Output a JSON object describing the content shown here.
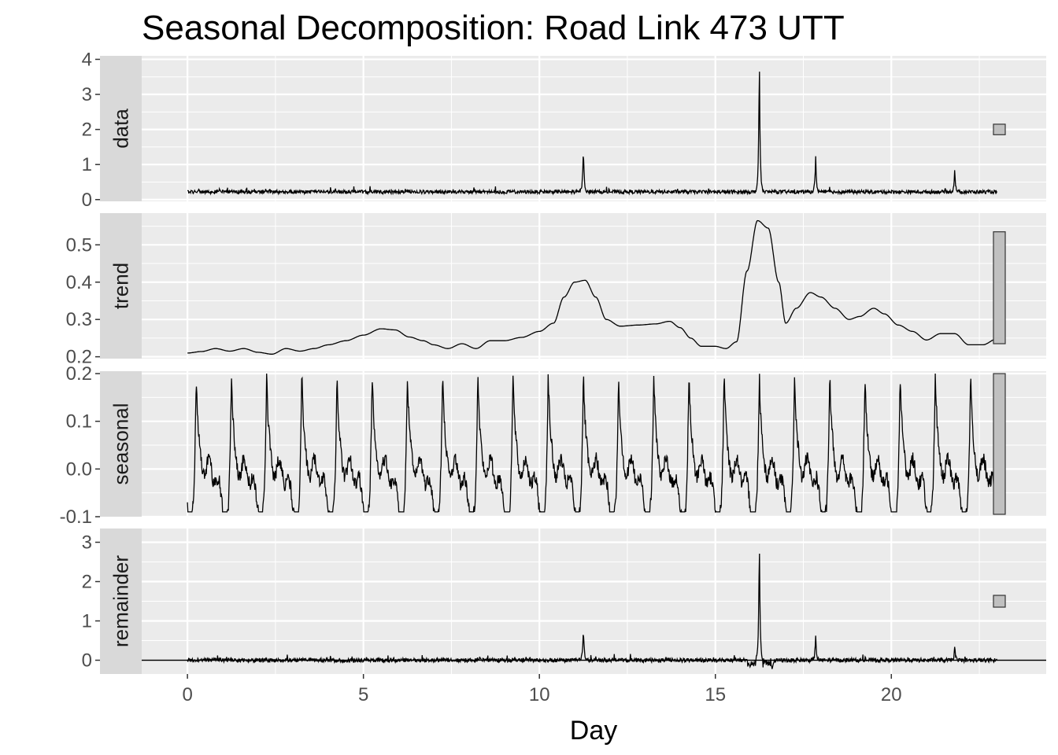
{
  "chart_data": {
    "type": "line",
    "title": "Seasonal Decomposition: Road Link 473 UTT",
    "xlabel": "Day",
    "ylabel": "",
    "xlim": [
      -1.3,
      24.4
    ],
    "x_ticks": [
      0,
      5,
      10,
      15,
      20
    ],
    "x_tick_labels": [
      "0",
      "5",
      "10",
      "15",
      "20"
    ],
    "x_range": [
      0,
      23
    ],
    "grid": true,
    "theme": "gray panels with white gridlines",
    "line_color": "#000000",
    "panel_bg": "#ebebeb",
    "strip_bg": "#d9d9d9",
    "range_bar_fill": "#c0c0c0",
    "panels": [
      {
        "name": "data",
        "ylim": [
          -0.05,
          4.1
        ],
        "y_ticks": [
          0,
          1,
          2,
          3,
          4
        ],
        "y_tick_labels": [
          "0",
          "1",
          "2",
          "3",
          "4"
        ],
        "range_bar": [
          1.85,
          2.15
        ],
        "baseline": 0.22,
        "noise": 0.05,
        "events": [
          {
            "x": 11.25,
            "value": 1.35
          },
          {
            "x": 16.25,
            "value": 3.95
          },
          {
            "x": 17.85,
            "value": 1.0
          },
          {
            "x": 21.8,
            "value": 0.65
          }
        ]
      },
      {
        "name": "trend",
        "ylim": [
          0.195,
          0.585
        ],
        "y_ticks": [
          0.2,
          0.3,
          0.4,
          0.5
        ],
        "y_tick_labels": [
          "0.2",
          "0.3",
          "0.4",
          "0.5"
        ],
        "range_bar": [
          0.235,
          0.535
        ],
        "x": [
          0,
          0.4,
          0.8,
          1.2,
          1.6,
          2.0,
          2.4,
          2.8,
          3.2,
          3.6,
          4.0,
          4.5,
          5.0,
          5.5,
          5.9,
          6.3,
          6.7,
          7.0,
          7.4,
          7.8,
          8.2,
          8.6,
          9.0,
          9.5,
          10.0,
          10.4,
          10.7,
          11.0,
          11.3,
          11.6,
          11.9,
          12.3,
          12.8,
          13.3,
          13.7,
          14.0,
          14.3,
          14.6,
          15.0,
          15.3,
          15.6,
          15.9,
          16.2,
          16.5,
          16.8,
          17.0,
          17.3,
          17.7,
          18.0,
          18.4,
          18.8,
          19.1,
          19.5,
          19.8,
          20.2,
          20.6,
          21.0,
          21.4,
          21.8,
          22.2,
          22.6,
          23.0
        ],
        "values": [
          0.21,
          0.214,
          0.222,
          0.215,
          0.222,
          0.212,
          0.207,
          0.222,
          0.215,
          0.222,
          0.232,
          0.243,
          0.258,
          0.275,
          0.272,
          0.253,
          0.243,
          0.232,
          0.222,
          0.235,
          0.222,
          0.243,
          0.243,
          0.252,
          0.268,
          0.29,
          0.36,
          0.4,
          0.405,
          0.36,
          0.3,
          0.282,
          0.285,
          0.288,
          0.295,
          0.278,
          0.25,
          0.228,
          0.228,
          0.222,
          0.24,
          0.43,
          0.565,
          0.545,
          0.4,
          0.29,
          0.33,
          0.372,
          0.36,
          0.33,
          0.3,
          0.308,
          0.33,
          0.315,
          0.285,
          0.268,
          0.245,
          0.262,
          0.262,
          0.232,
          0.232,
          0.248
        ]
      },
      {
        "name": "seasonal",
        "ylim": [
          -0.1,
          0.205
        ],
        "y_ticks": [
          -0.1,
          0.0,
          0.1,
          0.2
        ],
        "y_tick_labels": [
          "-0.1",
          "0.0",
          "0.1",
          "0.2"
        ],
        "range_bar": [
          -0.095,
          0.2
        ],
        "period_days": 1,
        "first_peak_day": 0.25,
        "min": -0.09,
        "max": 0.2
      },
      {
        "name": "remainder",
        "ylim": [
          -0.35,
          3.35
        ],
        "y_ticks": [
          0,
          1,
          2,
          3
        ],
        "y_tick_labels": [
          "0",
          "1",
          "2",
          "3"
        ],
        "range_bar": [
          1.35,
          1.65
        ],
        "baseline": 0,
        "noise": 0.05,
        "events": [
          {
            "x": 11.25,
            "value": 0.85
          },
          {
            "x": 16.25,
            "value": 3.2
          },
          {
            "x": 17.85,
            "value": 0.6
          },
          {
            "x": 21.8,
            "value": 0.35
          }
        ]
      }
    ]
  }
}
